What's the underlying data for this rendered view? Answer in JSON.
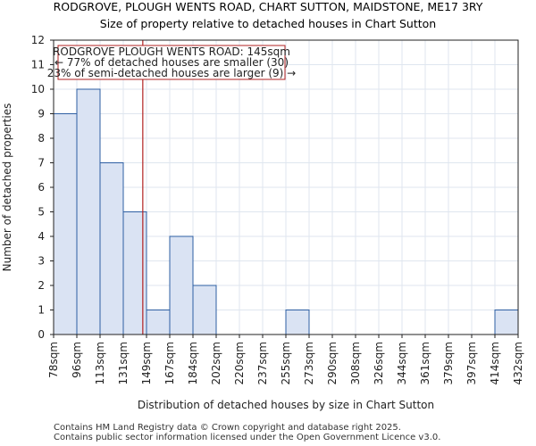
{
  "chart_data": {
    "type": "bar",
    "title": "RODGROVE, PLOUGH WENTS ROAD, CHART SUTTON, MAIDSTONE, ME17 3RY",
    "subtitle": "Size of property relative to detached houses in Chart Sutton",
    "xlabel": "Distribution of detached houses by size in Chart Sutton",
    "ylabel": "Number of detached properties",
    "bin_edges": [
      "78sqm",
      "96sqm",
      "113sqm",
      "131sqm",
      "149sqm",
      "167sqm",
      "184sqm",
      "202sqm",
      "220sqm",
      "237sqm",
      "255sqm",
      "273sqm",
      "290sqm",
      "308sqm",
      "326sqm",
      "344sqm",
      "361sqm",
      "379sqm",
      "397sqm",
      "414sqm",
      "432sqm"
    ],
    "values": [
      9,
      10,
      7,
      5,
      1,
      4,
      2,
      0,
      0,
      0,
      1,
      0,
      0,
      0,
      0,
      0,
      0,
      0,
      0,
      1
    ],
    "ylim": [
      0,
      12
    ],
    "yticks": [
      0,
      1,
      2,
      3,
      4,
      5,
      6,
      7,
      8,
      9,
      10,
      11,
      12
    ],
    "grid": true,
    "marker": {
      "value_sqm": 145,
      "bin_position": 3.84
    },
    "annotation": {
      "lines": [
        "RODGROVE PLOUGH WENTS ROAD: 145sqm",
        "← 77% of detached houses are smaller (30)",
        "23% of semi-detached houses are larger (9) →"
      ]
    },
    "colors": {
      "bar_fill": "#dae3f3",
      "bar_edge": "#2e5fa3",
      "marker": "#b22222",
      "grid": "#dfe6ef"
    }
  },
  "footer": {
    "line1": "Contains HM Land Registry data © Crown copyright and database right 2025.",
    "line2": "Contains public sector information licensed under the Open Government Licence v3.0."
  }
}
